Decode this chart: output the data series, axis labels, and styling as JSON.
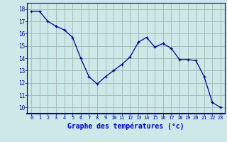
{
  "x": [
    0,
    1,
    2,
    3,
    4,
    5,
    6,
    7,
    8,
    9,
    10,
    11,
    12,
    13,
    14,
    15,
    16,
    17,
    18,
    19,
    20,
    21,
    22,
    23
  ],
  "y": [
    17.8,
    17.8,
    17.0,
    16.6,
    16.3,
    15.7,
    14.0,
    12.5,
    11.9,
    12.5,
    13.0,
    13.5,
    14.1,
    15.3,
    15.7,
    14.9,
    15.2,
    14.8,
    13.9,
    13.9,
    13.8,
    12.5,
    10.4,
    10.0
  ],
  "xlabel": "Graphe des températures (°c)",
  "xlim": [
    -0.5,
    23.5
  ],
  "ylim": [
    9.5,
    18.5
  ],
  "yticks": [
    10,
    11,
    12,
    13,
    14,
    15,
    16,
    17,
    18
  ],
  "xticks": [
    0,
    1,
    2,
    3,
    4,
    5,
    6,
    7,
    8,
    9,
    10,
    11,
    12,
    13,
    14,
    15,
    16,
    17,
    18,
    19,
    20,
    21,
    22,
    23
  ],
  "line_color": "#00008b",
  "marker": "+",
  "bg_color": "#cce8e8",
  "grid_color": "#aabbbb",
  "tick_color": "#0000aa",
  "label_color": "#0000cc",
  "bottom_bar_color": "#0000aa"
}
